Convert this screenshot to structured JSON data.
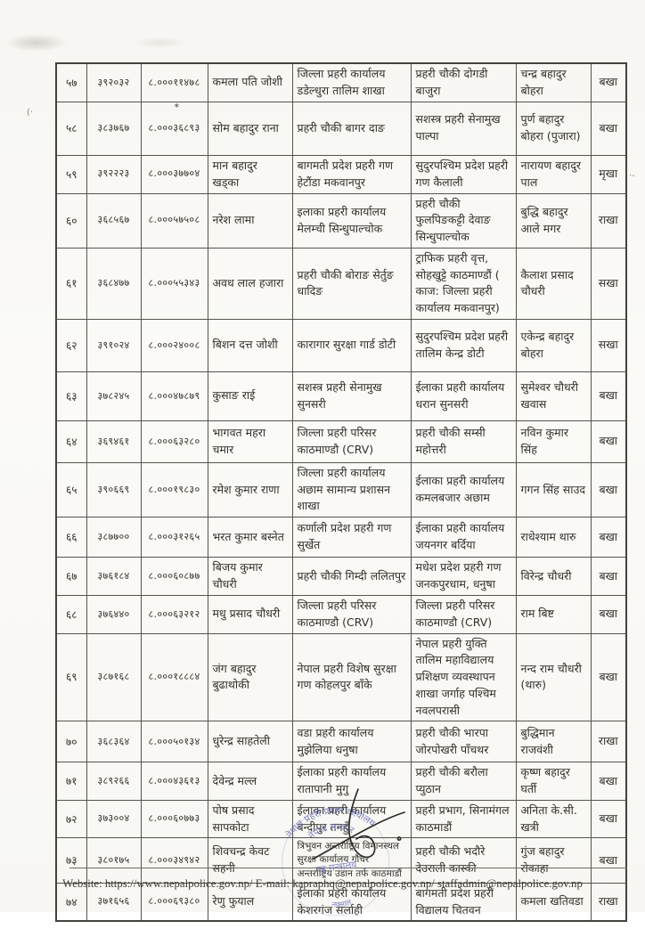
{
  "table": {
    "rows": [
      {
        "sn": "५७",
        "regno": "३९२०३२",
        "code": "८.०००११४७८",
        "name": "कमला पति जोशी",
        "office": "जिल्ला प्रहरी कार्यालय डडेल्धुरा तालिम शाखा",
        "posting": "प्रहरी चौकी दोगडी बाजुरा",
        "recommender": "चन्द्र बहादुर बोहरा",
        "status": "बखा"
      },
      {
        "sn": "५८",
        "regno": "३८३७६७",
        "code": "८.०००३६८९३",
        "code_mark": "*",
        "name": "सोम बहादुर राना",
        "office": "प्रहरी चौकी बागर दाङ",
        "posting": "सशस्त्र प्रहरी सेनामुख पाल्पा",
        "recommender": "पुर्ण बहादुर बोहरा (पुजारा)",
        "status": "बखा"
      },
      {
        "sn": "५९",
        "regno": "३९२२२३",
        "code": "८.०००३७७०४",
        "name": "मान बहादुर खड्का",
        "office": "बागमती प्रदेश प्रहरी गण हेटौंडा मकवानपुर",
        "posting": "सुदुरपश्चिम प्रदेश प्रहरी गण कैलाली",
        "recommender": "नारायण बहादुर पाल",
        "status": "मृखा"
      },
      {
        "sn": "६०",
        "regno": "३६८५६७",
        "code": "८.०००५७५०८",
        "name": "नरेश लामा",
        "office": "इलाका प्रहरी कार्यालय मेलम्ची सिन्धुपाल्चोक",
        "posting": "प्रहरी चौकी फुलपिङकट्टी देवाङ सिन्धुपाल्चोक",
        "recommender": "बुद्धि बहादुर आले मगर",
        "status": "राखा"
      },
      {
        "sn": "६१",
        "regno": "३६८४७७",
        "code": "८.०००५५३४३",
        "name": "अवध लाल हजारा",
        "office": "प्रहरी चौकी बोराङ सेर्तुङ धादिङ",
        "posting": "ट्राफिक प्रहरी वृत्त, सोहखुट्टे काठमाण्डौं ( काज: जिल्ला प्रहरी कार्यालय मकवानपुर)",
        "recommender": "कैलाश प्रसाद चौधरी",
        "status": "सखा"
      },
      {
        "sn": "६२",
        "regno": "३९१०२४",
        "code": "८.०००२४००८",
        "name": "बिशन दत्त जोशी",
        "office": "कारागार सुरक्षा गार्ड डोटी",
        "posting": "सुदुरपश्चिम प्रदेश प्रहरी तालिम केन्द्र डोटी",
        "recommender": "एकेन्द्र बहादुर बोहरा",
        "status": "सखा"
      },
      {
        "sn": "६३",
        "regno": "३७८२४५",
        "code": "८.०००४७८७९",
        "name": "कुसाङ राई",
        "office": "सशस्त्र प्रहरी सेनामुख सुनसरी",
        "posting": "ईलाका प्रहरी कार्यालय धरान सुनसरी",
        "recommender": "सुमेश्वर चौधरी खवास",
        "status": "बखा"
      },
      {
        "sn": "६४",
        "regno": "३६९४६१",
        "code": "८.०००६३२८०",
        "name": "भागवत महरा चमार",
        "office": "जिल्ला प्रहरी परिसर काठमाण्डौ (CRV)",
        "posting": "प्रहरी चौकी सम्सी महोत्तरी",
        "recommender": "नविन कुमार सिंह",
        "status": "बखा"
      },
      {
        "sn": "६५",
        "regno": "३९०६६९",
        "code": "८.०००१९८३०",
        "name": "रमेश कुमार राणा",
        "office": "जिल्ला प्रहरी कार्यालय अछाम सामान्य प्रशासन शाखा",
        "posting": "ईलाका प्रहरी कार्यालय कमलबजार अछाम",
        "recommender": "गगन सिंह साउद",
        "status": "बखा"
      },
      {
        "sn": "६६",
        "regno": "३८७७००",
        "code": "८.०००३१२६५",
        "name": "भरत कुमार बस्नेत",
        "office": "कर्णाली प्रदेश प्रहरी गण सुर्खेत",
        "posting": "ईलाका प्रहरी कार्यालय जयनगर बर्दिया",
        "recommender": "राधेश्याम थारु",
        "status": "बखा"
      },
      {
        "sn": "६७",
        "regno": "३७६१८४",
        "code": "८.०००६०८७७",
        "name": "बिजय कुमार चौधरी",
        "office": "प्रहरी चौकी गिम्दी ललितपुर",
        "posting": "मधेश प्रदेश प्रहरी गण जनकपुरधाम, धनुषा",
        "recommender": "विरेन्द्र चौधरी",
        "status": "बखा"
      },
      {
        "sn": "६८",
        "regno": "३७६४४०",
        "code": "८.०००६३२१२",
        "name": "मधु प्रसाद चौधरी",
        "office": "जिल्ला प्रहरी परिसर काठमाण्डौ (CRV)",
        "posting": "जिल्ला प्रहरी परिसर काठमाण्डौ (CRV)",
        "recommender": "राम बिष्ट",
        "status": "बखा"
      },
      {
        "sn": "६९",
        "regno": "३८७१६८",
        "code": "८.०००१८८८४",
        "name": "जंग बहादुर बुढाथोकी",
        "office": "नेपाल प्रहरी विशेष सुरक्षा गण कोहलपुर बाँके",
        "posting": "नेपाल प्रहरी युक्ति तालिम महाविद्यालय प्रशिक्षण व्यवस्थापन शाखा जर्गाह पश्चिम नवलपरासी",
        "recommender": "नन्द राम चौधरी (थारु)",
        "status": "बखा"
      },
      {
        "sn": "७०",
        "regno": "३६८३६४",
        "code": "८.०००५०१३४",
        "name": "धुरेन्द्र साहतेली",
        "office": "वडा प्रहरी कार्यालय मुझेलिया धनुषा",
        "posting": "प्रहरी चौकी भारपा जोरपोखरी पाँचथर",
        "recommender": "बुद्धिमान राजवंशी",
        "status": "राखा"
      },
      {
        "sn": "७१",
        "regno": "३८९२६६",
        "code": "८.०००४३६१३",
        "name": "देवेन्द्र मल्ल",
        "office": "ईलाका प्रहरी कार्यालय रातापानी मुगु",
        "posting": "प्रहरी चौकी बरौला प्युठान",
        "recommender": "कृष्ण बहादुर घर्ती",
        "status": "बखा"
      },
      {
        "sn": "७२",
        "regno": "३७३००४",
        "code": "८.०००६०७७३",
        "name": "पोष प्रसाद सापकोटा",
        "office": "ईलाका प्रहरी कार्यालय बन्दीपुर तनहुँ",
        "posting": "प्रहरी प्रभाग, सिनामंगल काठमाडौं",
        "recommender": "अनिता के.सी. खत्री",
        "status": "बखा"
      },
      {
        "sn": "७३",
        "regno": "३८०१७५",
        "code": "८.०००३४९४२",
        "name": "शिवचन्द्र केवट सहनी",
        "office": "त्रिभुवन अन्तर्राष्ट्रिय विमानस्थल सुरक्षा कार्यालय गौचर अन्तर्राष्ट्रिय उडान तर्फ काठमाडौं",
        "office_small": true,
        "posting": "प्रहरी चौकी भदौरे देउराली कास्की",
        "recommender": "गुंज बहादुर रोकाहा",
        "status": "बखा"
      },
      {
        "sn": "७४",
        "regno": "३७१६५६",
        "code": "८.०००६९३८०",
        "name": "रेणु फुयाल",
        "office": "ईलाका प्रहरी कार्यालय केशरगंज सर्लाही",
        "posting": "बागमती प्रदेश प्रहरी विद्यालय चितवन",
        "recommender": "कमला खतिवडा",
        "status": "राखा"
      }
    ]
  },
  "footer": {
    "text": "Website: https://www.nepalpolice.gov.np/ E-mail: kapraphq@nepalpolice.gov.np/ staffadmin@nepalpolice.gov.np"
  },
  "stamp": {
    "outer_arc": "नेपाल प्रहरी प्रधान कार्यालय",
    "top_arc": "नेपाल सरकार",
    "middle": "गृह मन्त्रालय",
    "bottom": "नक्साल",
    "color": "#5f64b2"
  }
}
